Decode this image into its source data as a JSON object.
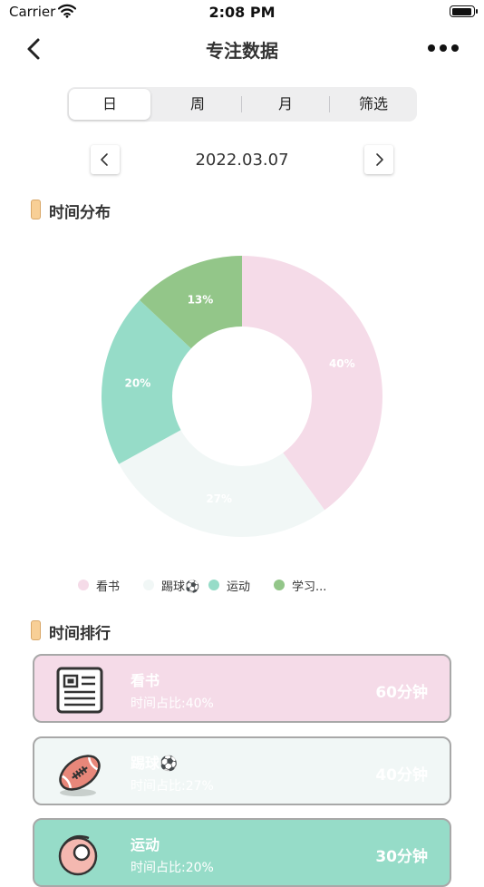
{
  "status_bar": {
    "carrier": "Carrier",
    "time": "2:08 PM"
  },
  "nav": {
    "title": "专注数据"
  },
  "tabs": [
    {
      "label": "日",
      "active": true
    },
    {
      "label": "周",
      "active": false
    },
    {
      "label": "月",
      "active": false
    },
    {
      "label": "筛选",
      "active": false
    }
  ],
  "date": "2022.03.07",
  "sections": {
    "distribution_title": "时间分布",
    "ranking_title": "时间排行"
  },
  "chart_data": {
    "type": "pie",
    "donut": true,
    "title": "",
    "slices": [
      {
        "name": "看书",
        "value": 40,
        "label": "40%",
        "color": "#f5dbe8"
      },
      {
        "name": "踢球⚽",
        "value": 27,
        "label": "27%",
        "color": "#f1f7f6"
      },
      {
        "name": "运动",
        "value": 20,
        "label": "20%",
        "color": "#96dcc8"
      },
      {
        "name": "学习...",
        "value": 13,
        "label": "13%",
        "color": "#93c689"
      }
    ],
    "legend_position": "bottom"
  },
  "ranking": [
    {
      "name": "看书",
      "ratio": "时间占比:40%",
      "time": "60分钟",
      "color": "#f5dbe8",
      "icon": "newspaper-icon"
    },
    {
      "name": "踢球⚽",
      "ratio": "时间占比:27%",
      "time": "40分钟",
      "color": "#f1f7f6",
      "icon": "football-icon"
    },
    {
      "name": "运动",
      "ratio": "时间占比:20%",
      "time": "30分钟",
      "color": "#96dcc8",
      "icon": "sport-icon"
    }
  ]
}
